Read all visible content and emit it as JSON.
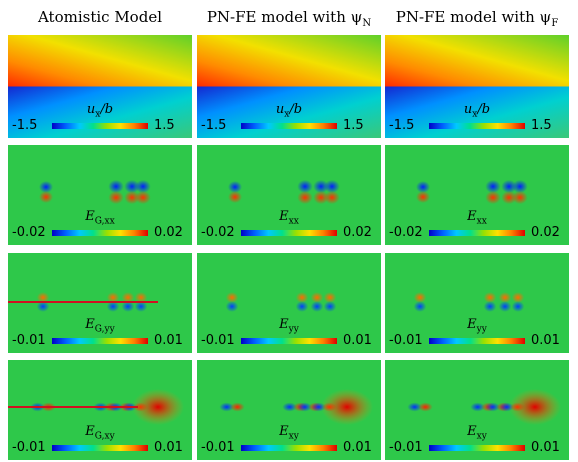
{
  "columns": [
    {
      "title": "Atomistic Model"
    },
    {
      "title": "PN-FE model with ψ",
      "sub": "N"
    },
    {
      "title": "PN-FE model with ψ",
      "sub": "F"
    }
  ],
  "rows": [
    {
      "field": "ux",
      "labels": [
        {
          "main": "u",
          "sub": "x",
          "suffix": "/b"
        },
        {
          "main": "u",
          "sub": "x",
          "suffix": "/b"
        },
        {
          "main": "u",
          "sub": "x",
          "suffix": "/b"
        }
      ],
      "min": "-1.5",
      "max": "1.5"
    },
    {
      "field": "exx",
      "labels": [
        {
          "main": "E",
          "sub": "G,xx",
          "suffix": ""
        },
        {
          "main": "E",
          "sub": "xx",
          "suffix": ""
        },
        {
          "main": "E",
          "sub": "xx",
          "suffix": ""
        }
      ],
      "min": "-0.02",
      "max": "0.02"
    },
    {
      "field": "eyy",
      "labels": [
        {
          "main": "E",
          "sub": "G,yy",
          "suffix": ""
        },
        {
          "main": "E",
          "sub": "yy",
          "suffix": ""
        },
        {
          "main": "E",
          "sub": "yy",
          "suffix": ""
        }
      ],
      "min": "-0.01",
      "max": "0.01"
    },
    {
      "field": "exy",
      "labels": [
        {
          "main": "E",
          "sub": "G,xy",
          "suffix": ""
        },
        {
          "main": "E",
          "sub": "xy",
          "suffix": ""
        },
        {
          "main": "E",
          "sub": "xy",
          "suffix": ""
        }
      ],
      "min": "-0.01",
      "max": "0.01"
    }
  ],
  "colors": {
    "background": "#2ec84a",
    "low": "#0000c8",
    "high": "#e00000"
  }
}
